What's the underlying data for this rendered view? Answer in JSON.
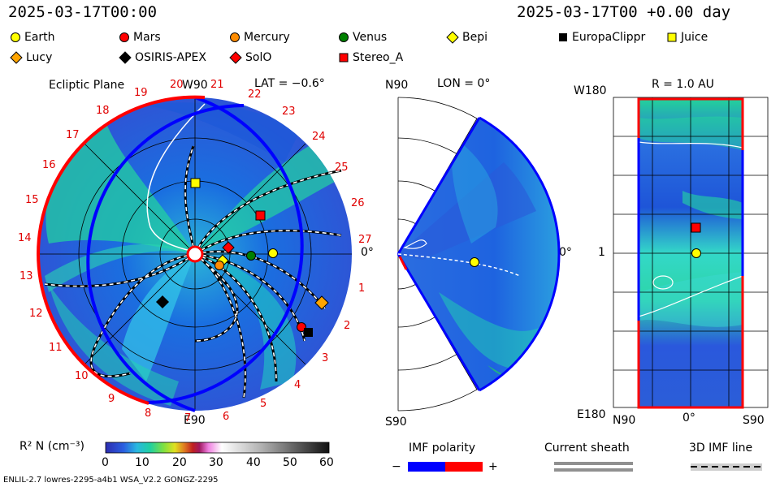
{
  "header": {
    "datetime": "2025-03-17T00:00",
    "elapsed": "2025-03-17T00 +0.00 day"
  },
  "legend": [
    {
      "label": "Earth",
      "shape": "circle",
      "color": "#ffff00"
    },
    {
      "label": "Mars",
      "shape": "circle",
      "color": "#ff0000"
    },
    {
      "label": "Mercury",
      "shape": "circle",
      "color": "#ff8c00"
    },
    {
      "label": "Venus",
      "shape": "circle",
      "color": "#008000"
    },
    {
      "label": "Bepi",
      "shape": "diamond",
      "color": "#ffff00"
    },
    {
      "label": "EuropaClippr",
      "shape": "square",
      "color": "#000000"
    },
    {
      "label": "Juice",
      "shape": "square",
      "color": "#ffff00"
    },
    {
      "label": "Lucy",
      "shape": "diamond",
      "color": "#ffa500"
    },
    {
      "label": "OSIRIS-APEX",
      "shape": "diamond",
      "color": "#000000"
    },
    {
      "label": "SolO",
      "shape": "diamond",
      "color": "#ff0000"
    },
    {
      "label": "Stereo_A",
      "shape": "square",
      "color": "#ff0000"
    }
  ],
  "ecliptic": {
    "label": "Ecliptic Plane",
    "lat_label": "LAT = −0.6°",
    "top_label": "W90",
    "bottom_label": "E90",
    "right_label": "0°",
    "sector_numbers": [
      "19",
      "20",
      "21",
      "22",
      "23",
      "24",
      "25",
      "26",
      "27",
      "1",
      "2",
      "3",
      "4",
      "5",
      "6",
      "7",
      "8",
      "9",
      "10",
      "11",
      "12",
      "13",
      "14",
      "15",
      "16",
      "17",
      "18"
    ]
  },
  "meridional": {
    "lon_label": "LON = 0°",
    "top_label": "N90",
    "bottom_label": "S90",
    "right_label": "0°"
  },
  "radial": {
    "r_label": "R = 1.0 AU",
    "top_left": "W180",
    "middle_left": "1",
    "bottom_left": "E180",
    "x_left": "N90",
    "x_mid": "0°",
    "x_right": "S90"
  },
  "colorbar": {
    "label": "R² N (cm⁻³)",
    "ticks": [
      "0",
      "10",
      "20",
      "30",
      "40",
      "50",
      "60"
    ]
  },
  "imf": {
    "title": "IMF polarity",
    "minus": "−",
    "plus": "+",
    "neg_color": "#0000ff",
    "pos_color": "#ff0000"
  },
  "sheath": {
    "title": "Current sheath"
  },
  "imf3d": {
    "title": "3D IMF line"
  },
  "footer": "ENLIL-2.7 lowres-2295-a4b1 WSA_V2.2 GONGZ-2295"
}
